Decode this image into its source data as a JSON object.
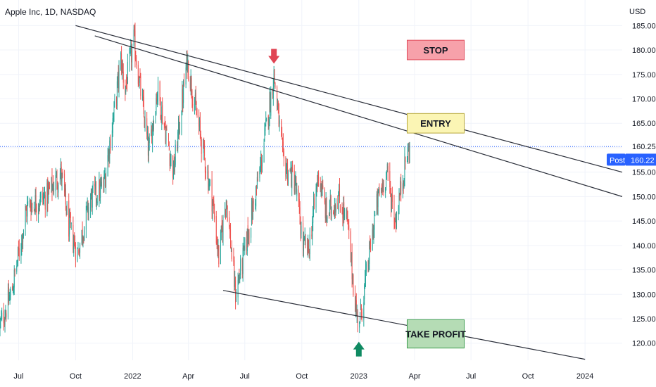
{
  "header": {
    "title": "Apple Inc, 1D, NASDAQ"
  },
  "chart_data": {
    "type": "candlestick",
    "title": "Apple Inc, 1D, NASDAQ",
    "currency": "USD",
    "x_range": [
      "2021-06-01",
      "2024-03-01"
    ],
    "y_range": [
      116.5,
      186.2
    ],
    "y_ticks": [
      185,
      180,
      175,
      170,
      165,
      160,
      155,
      150,
      145,
      140,
      135,
      130,
      125,
      120
    ],
    "y_tick_labels": [
      "185.00",
      "180.00",
      "175.00",
      "170.00",
      "165.00",
      "160.00",
      "155.00",
      "150.00",
      "145.00",
      "140.00",
      "135.00",
      "130.00",
      "125.00",
      "120.00"
    ],
    "x_ticks": [
      {
        "label": "Jul",
        "date": "2021-07-01"
      },
      {
        "label": "Oct",
        "date": "2021-10-01"
      },
      {
        "label": "2022",
        "date": "2022-01-01"
      },
      {
        "label": "Apr",
        "date": "2022-04-01"
      },
      {
        "label": "Jul",
        "date": "2022-07-01"
      },
      {
        "label": "Oct",
        "date": "2022-10-01"
      },
      {
        "label": "2023",
        "date": "2023-01-01"
      },
      {
        "label": "Apr",
        "date": "2023-04-01"
      },
      {
        "label": "Jul",
        "date": "2023-07-01"
      },
      {
        "label": "Oct",
        "date": "2023-10-01"
      },
      {
        "label": "2024",
        "date": "2024-01-01"
      }
    ],
    "price_path": [
      [
        "2021-06-01",
        123.5
      ],
      [
        "2021-06-20",
        130.5
      ],
      [
        "2021-07-15",
        148.0
      ],
      [
        "2021-08-15",
        150.0
      ],
      [
        "2021-09-07",
        155.0
      ],
      [
        "2021-09-20",
        144.0
      ],
      [
        "2021-10-04",
        138.5
      ],
      [
        "2021-10-25",
        149.5
      ],
      [
        "2021-11-15",
        152.0
      ],
      [
        "2021-12-05",
        170.0
      ],
      [
        "2021-12-13",
        178.0
      ],
      [
        "2021-12-20",
        172.0
      ],
      [
        "2022-01-03",
        182.0
      ],
      [
        "2022-01-27",
        159.0
      ],
      [
        "2022-02-10",
        172.0
      ],
      [
        "2022-03-08",
        155.0
      ],
      [
        "2022-03-30",
        178.0
      ],
      [
        "2022-04-15",
        166.0
      ],
      [
        "2022-05-10",
        149.0
      ],
      [
        "2022-05-20",
        137.5
      ],
      [
        "2022-06-01",
        150.0
      ],
      [
        "2022-06-16",
        130.0
      ],
      [
        "2022-07-01",
        139.0
      ],
      [
        "2022-07-25",
        155.0
      ],
      [
        "2022-08-17",
        175.0
      ],
      [
        "2022-09-01",
        157.0
      ],
      [
        "2022-09-20",
        153.0
      ],
      [
        "2022-10-03",
        140.0
      ],
      [
        "2022-10-12",
        139.0
      ],
      [
        "2022-10-28",
        155.0
      ],
      [
        "2022-11-10",
        146.0
      ],
      [
        "2022-11-28",
        150.0
      ],
      [
        "2022-12-13",
        145.0
      ],
      [
        "2022-12-28",
        126.0
      ],
      [
        "2023-01-03",
        125.0
      ],
      [
        "2023-01-27",
        146.0
      ],
      [
        "2023-02-02",
        150.0
      ],
      [
        "2023-02-15",
        155.0
      ],
      [
        "2023-03-01",
        145.0
      ],
      [
        "2023-03-17",
        157.0
      ],
      [
        "2023-03-24",
        160.2
      ]
    ],
    "last_price": 160.25,
    "last_price_label": "160.25",
    "post_label": "Post",
    "post_price": 160.22,
    "post_price_label": "160.22",
    "trendlines": [
      {
        "from": [
          "2021-10-01",
          185.0
        ],
        "to": [
          "2024-03-01",
          155.0
        ]
      },
      {
        "from": [
          "2021-11-01",
          182.9
        ],
        "to": [
          "2024-03-01",
          150.0
        ]
      },
      {
        "from": [
          "2022-05-27",
          130.8
        ],
        "to": [
          "2024-01-01",
          116.7
        ]
      }
    ],
    "annotations": [
      {
        "label": "STOP",
        "from": [
          "2023-03-20",
          182.0
        ],
        "to": [
          "2023-06-20",
          178.0
        ],
        "fill": "#f7a1aa",
        "stroke": "#e04a5a"
      },
      {
        "label": "ENTRY",
        "from": [
          "2023-03-20",
          167.0
        ],
        "to": [
          "2023-06-20",
          163.0
        ],
        "fill": "#fbf5b4",
        "stroke": "#b7a83c"
      },
      {
        "label": "TAKE PROFIT",
        "from": [
          "2023-03-20",
          124.8
        ],
        "to": [
          "2023-06-20",
          119.0
        ],
        "fill": "#b5dcb5",
        "stroke": "#3e9d4f"
      }
    ],
    "arrows": [
      {
        "direction": "down",
        "at": [
          "2022-08-17",
          178.5
        ],
        "color": "#e04453"
      },
      {
        "direction": "up",
        "at": [
          "2023-01-01",
          119.0
        ],
        "color": "#0f8a62"
      }
    ],
    "colors": {
      "up": "#26a69a",
      "down": "#ef5350",
      "trendline": "#2a2e39",
      "price_line": "#2962ff"
    }
  }
}
